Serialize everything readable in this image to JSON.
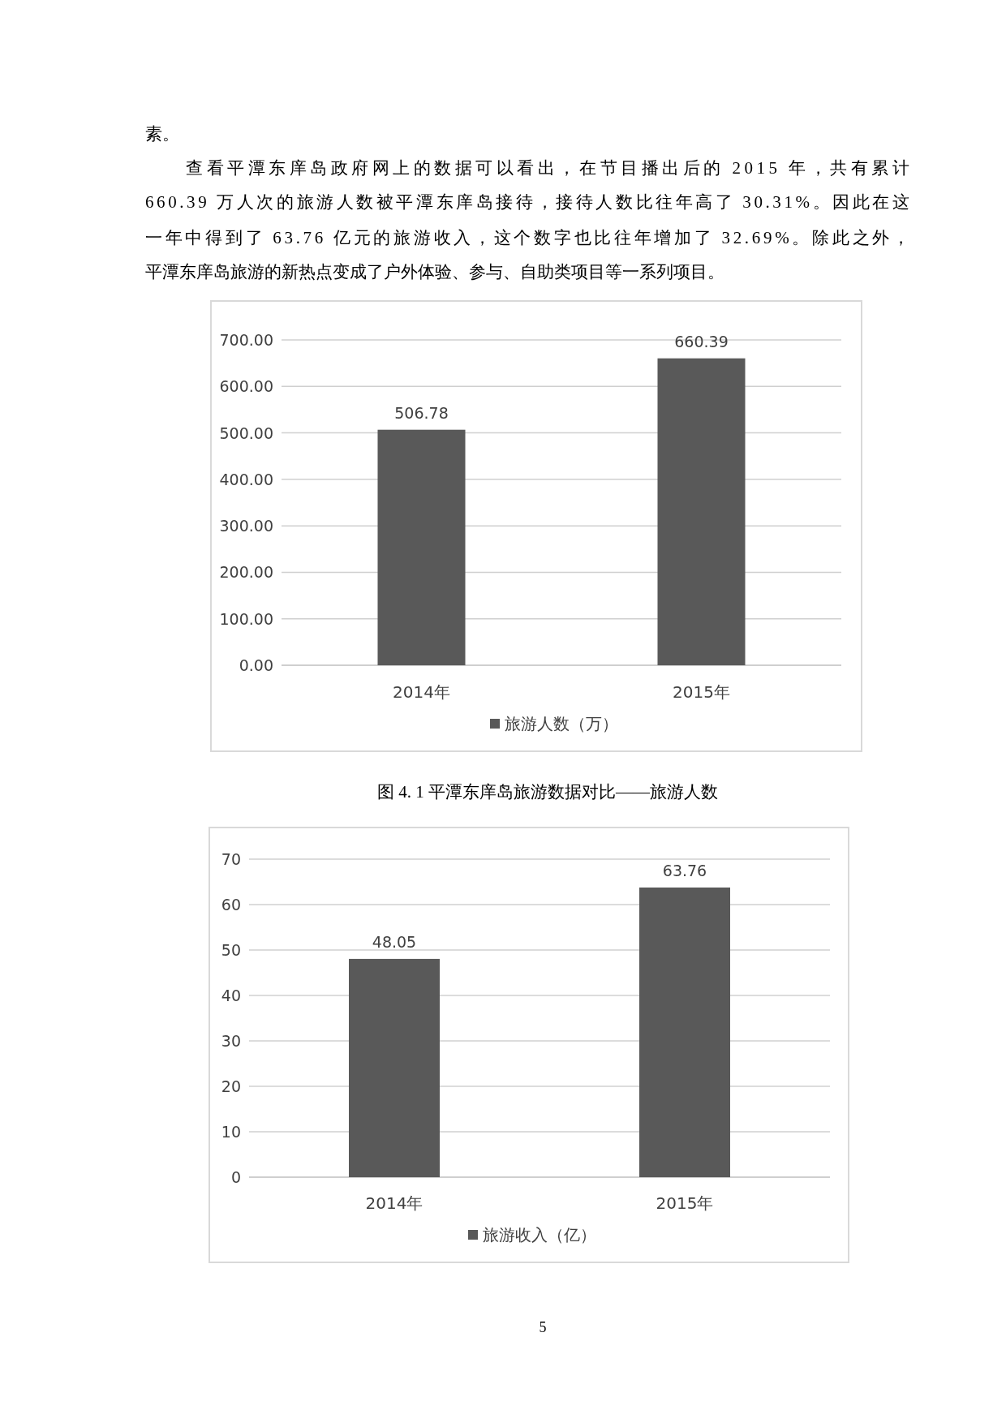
{
  "chart_data": [
    {
      "type": "bar",
      "categories": [
        "2014年",
        "2015年"
      ],
      "series": [
        {
          "name": "旅游人数（万）",
          "color": "#595959",
          "values": [
            506.78,
            660.39
          ]
        }
      ],
      "ylim": [
        0,
        700
      ],
      "yticks": [
        {
          "value": 0,
          "label": "0.00"
        },
        {
          "value": 100,
          "label": "100.00"
        },
        {
          "value": 200,
          "label": "200.00"
        },
        {
          "value": 300,
          "label": "300.00"
        },
        {
          "value": 400,
          "label": "400.00"
        },
        {
          "value": 500,
          "label": "500.00"
        },
        {
          "value": 600,
          "label": "600.00"
        },
        {
          "value": 700,
          "label": "700.00"
        }
      ],
      "grid": "y",
      "legend": "bottom",
      "data_labels": true,
      "annotations": [
        "素。",
        "查看平潭东庠岛政府网上的数据可以看出，在节目播出后的 2015 年，共有累计",
        "660.39 万人次的旅游人数被平潭东庠岛接待，接待人数比往年高了 30.31%。因此在这",
        "一年中得到了 63.76 亿元的旅游收入，这个数字也比往年增加了 32.69%。除此之外，",
        "平潭东庠岛旅游的新热点变成了户外体验、参与、自助类项目等一系列项目。",
        "图 4. 1 平潭东庠岛旅游数据对比——旅游人数"
      ]
    },
    {
      "type": "bar",
      "categories": [
        "2014年",
        "2015年"
      ],
      "series": [
        {
          "name": "旅游收入（亿）",
          "color": "#595959",
          "values": [
            48.05,
            63.76
          ]
        }
      ],
      "ylim": [
        0,
        70
      ],
      "yticks": [
        0,
        10,
        20,
        30,
        40,
        50,
        60,
        70
      ],
      "grid": "y",
      "legend": "bottom",
      "data_labels": true,
      "annotations": [
        "5"
      ]
    }
  ]
}
